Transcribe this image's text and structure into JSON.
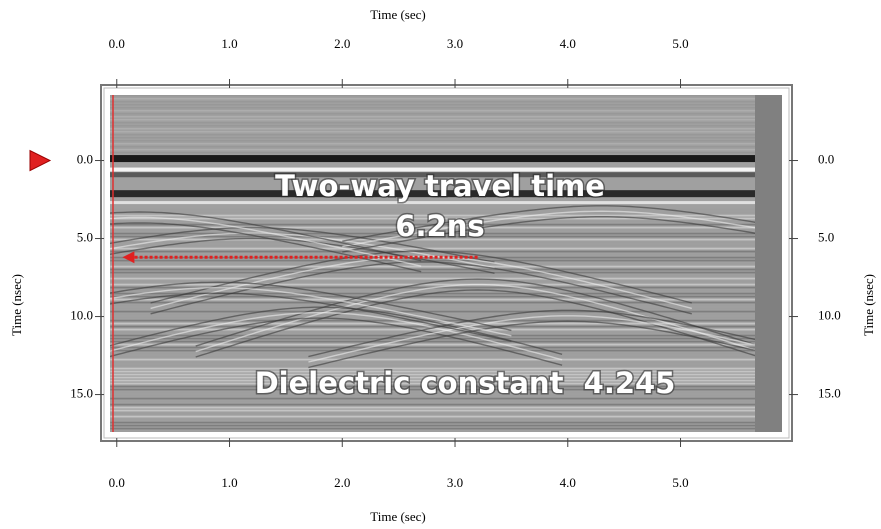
{
  "chart_data": {
    "type": "radargram",
    "x_label": "Time (sec)",
    "y_label": "Time (nsec)",
    "xlim": [
      -0.06,
      5.9
    ],
    "ylim": [
      -4.2,
      17.4
    ],
    "xticks": [
      {
        "value": 0,
        "label": "0.0"
      },
      {
        "value": 1,
        "label": "1.0"
      },
      {
        "value": 2,
        "label": "2.0"
      },
      {
        "value": 3,
        "label": "3.0"
      },
      {
        "value": 4,
        "label": "4.0"
      },
      {
        "value": 5,
        "label": "5.0"
      }
    ],
    "yticks": [
      {
        "value": 0,
        "label": "0.0"
      },
      {
        "value": 5,
        "label": "5.0"
      },
      {
        "value": 10,
        "label": "10.0"
      },
      {
        "value": 15,
        "label": "15.0"
      }
    ],
    "annotations": [
      "Two-way travel time",
      "Dielectric constant  4.245"
    ],
    "reflection_arrow": {
      "time": {
        "value": 6.2,
        "label": "6.2ns"
      },
      "x": [
        3.2,
        0.05
      ],
      "color": "#e02020"
    }
  }
}
